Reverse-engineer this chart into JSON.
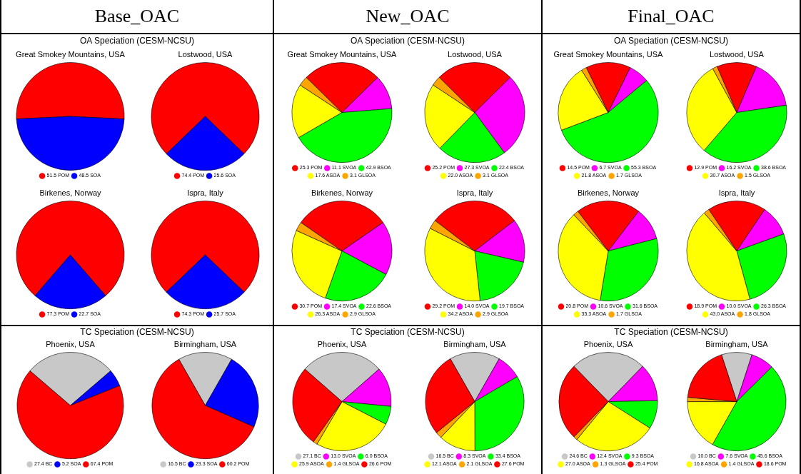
{
  "chart_data": [
    {
      "type": "pie",
      "title": "Great Smokey Mountains, USA",
      "categories": [
        "POM",
        "SOA"
      ],
      "values": [
        51.5,
        48.5
      ],
      "value_labels": [
        "51.5",
        "48.5"
      ],
      "colors": [
        "#ff0000",
        "#0000ff"
      ],
      "legend": "bottom",
      "annotations": [
        "Base_OAC",
        "OA Speciation (CESM-NCSU)"
      ]
    },
    {
      "type": "pie",
      "title": "Lostwood, USA",
      "categories": [
        "POM",
        "SOA"
      ],
      "values": [
        74.4,
        25.6
      ],
      "value_labels": [
        "74.4",
        "25.6"
      ],
      "colors": [
        "#ff0000",
        "#0000ff"
      ],
      "legend": "bottom"
    },
    {
      "type": "pie",
      "title": "Great Smokey Mountains, USA",
      "categories": [
        "POM",
        "SVOA",
        "BSOA",
        "ASOA",
        "GLSOA"
      ],
      "values": [
        25.3,
        11.1,
        42.9,
        17.6,
        3.1
      ],
      "value_labels": [
        "25.3",
        "11.1",
        "42.9",
        "17.6",
        "3.1"
      ],
      "colors": [
        "#ff0000",
        "#ff00ff",
        "#00ff00",
        "#ffff00",
        "#ffa500"
      ],
      "legend": "bottom",
      "annotations": [
        "New_OAC",
        "OA Speciation (CESM-NCSU)"
      ]
    },
    {
      "type": "pie",
      "title": "Lostwood, USA",
      "categories": [
        "POM",
        "SVOA",
        "BSOA",
        "ASOA",
        "GLSOA"
      ],
      "values": [
        25.2,
        27.3,
        22.4,
        22.0,
        3.1
      ],
      "value_labels": [
        "25.2",
        "27.3",
        "22.4",
        "22.0",
        "3.1"
      ],
      "colors": [
        "#ff0000",
        "#ff00ff",
        "#00ff00",
        "#ffff00",
        "#ffa500"
      ],
      "legend": "bottom"
    },
    {
      "type": "pie",
      "title": "Great Smokey Mountains, USA",
      "categories": [
        "POM",
        "SVOA",
        "BSOA",
        "ASOA",
        "GLSOA"
      ],
      "values": [
        14.5,
        6.7,
        55.3,
        21.8,
        1.7
      ],
      "value_labels": [
        "14.5",
        "6.7",
        "55.3",
        "21.8",
        "1.7"
      ],
      "colors": [
        "#ff0000",
        "#ff00ff",
        "#00ff00",
        "#ffff00",
        "#ffa500"
      ],
      "legend": "bottom",
      "annotations": [
        "Final_OAC",
        "OA Speciation (CESM-NCSU)"
      ]
    },
    {
      "type": "pie",
      "title": "Lostwood, USA",
      "categories": [
        "POM",
        "SVOA",
        "BSOA",
        "ASOA",
        "GLSOA"
      ],
      "values": [
        12.9,
        16.2,
        38.6,
        30.7,
        1.5
      ],
      "value_labels": [
        "12.9",
        "16.2",
        "38.6",
        "30.7",
        "1.5"
      ],
      "colors": [
        "#ff0000",
        "#ff00ff",
        "#00ff00",
        "#ffff00",
        "#ffa500"
      ],
      "legend": "bottom"
    },
    {
      "type": "pie",
      "title": "Birkenes, Norway",
      "categories": [
        "POM",
        "SOA"
      ],
      "values": [
        77.3,
        22.7
      ],
      "value_labels": [
        "77.3",
        "22.7"
      ],
      "colors": [
        "#ff0000",
        "#0000ff"
      ],
      "legend": "bottom"
    },
    {
      "type": "pie",
      "title": "Ispra, Italy",
      "categories": [
        "POM",
        "SOA"
      ],
      "values": [
        74.3,
        25.7
      ],
      "value_labels": [
        "74.3",
        "25.7"
      ],
      "colors": [
        "#ff0000",
        "#0000ff"
      ],
      "legend": "bottom"
    },
    {
      "type": "pie",
      "title": "Birkenes, Norway",
      "categories": [
        "POM",
        "SVOA",
        "BSOA",
        "ASOA",
        "GLSOA"
      ],
      "values": [
        30.7,
        17.4,
        22.6,
        26.3,
        2.9
      ],
      "value_labels": [
        "30.7",
        "17.4",
        "22.6",
        "26.3",
        "2.9"
      ],
      "colors": [
        "#ff0000",
        "#ff00ff",
        "#00ff00",
        "#ffff00",
        "#ffa500"
      ],
      "legend": "bottom"
    },
    {
      "type": "pie",
      "title": "Ispra, Italy",
      "categories": [
        "POM",
        "SVOA",
        "BSOA",
        "ASOA",
        "GLSOA"
      ],
      "values": [
        29.2,
        14.0,
        19.7,
        34.2,
        2.9
      ],
      "value_labels": [
        "29.2",
        "14.0",
        "19.7",
        "34.2",
        "2.9"
      ],
      "colors": [
        "#ff0000",
        "#ff00ff",
        "#00ff00",
        "#ffff00",
        "#ffa500"
      ],
      "legend": "bottom"
    },
    {
      "type": "pie",
      "title": "Birkenes, Norway",
      "categories": [
        "POM",
        "SVOA",
        "BSOA",
        "ASOA",
        "GLSOA"
      ],
      "values": [
        20.8,
        10.6,
        31.6,
        35.3,
        1.7
      ],
      "value_labels": [
        "20.8",
        "10.6",
        "31.6",
        "35.3",
        "1.7"
      ],
      "colors": [
        "#ff0000",
        "#ff00ff",
        "#00ff00",
        "#ffff00",
        "#ffa500"
      ],
      "legend": "bottom"
    },
    {
      "type": "pie",
      "title": "Ispra, Italy",
      "categories": [
        "POM",
        "SVOA",
        "BSOA",
        "ASOA",
        "GLSOA"
      ],
      "values": [
        18.9,
        10.0,
        26.3,
        43.0,
        1.8
      ],
      "value_labels": [
        "18.9",
        "10.0",
        "26.3",
        "43.0",
        "1.8"
      ],
      "colors": [
        "#ff0000",
        "#ff00ff",
        "#00ff00",
        "#ffff00",
        "#ffa500"
      ],
      "legend": "bottom"
    },
    {
      "type": "pie",
      "title": "Phoenix, USA",
      "categories": [
        "BC",
        "SOA",
        "POM"
      ],
      "values": [
        27.4,
        5.2,
        67.4
      ],
      "value_labels": [
        "27.4",
        "5.2",
        "67.4"
      ],
      "colors": [
        "#c8c8c8",
        "#0000ff",
        "#ff0000"
      ],
      "legend": "bottom",
      "annotations": [
        "TC Speciation (CESM-NCSU)"
      ]
    },
    {
      "type": "pie",
      "title": "Birmingham, USA",
      "categories": [
        "BC",
        "SOA",
        "POM"
      ],
      "values": [
        16.5,
        23.3,
        60.2
      ],
      "value_labels": [
        "16.5",
        "23.3",
        "60.2"
      ],
      "colors": [
        "#c8c8c8",
        "#0000ff",
        "#ff0000"
      ],
      "legend": "bottom"
    },
    {
      "type": "pie",
      "title": "Phoenix, USA",
      "categories": [
        "BC",
        "SVOA",
        "BSOA",
        "ASOA",
        "GLSOA",
        "POM"
      ],
      "values": [
        27.1,
        13.0,
        6.0,
        25.9,
        1.4,
        26.6
      ],
      "value_labels": [
        "27.1",
        "13.0",
        "6.0",
        "25.9",
        "1.4",
        "26.6"
      ],
      "colors": [
        "#c8c8c8",
        "#ff00ff",
        "#00ff00",
        "#ffff00",
        "#ffa500",
        "#ff0000"
      ],
      "legend": "bottom",
      "annotations": [
        "TC Speciation (CESM-NCSU)"
      ]
    },
    {
      "type": "pie",
      "title": "Birmingham, USA",
      "categories": [
        "BC",
        "SVOA",
        "BSOA",
        "ASOA",
        "GLSOA",
        "POM"
      ],
      "values": [
        16.5,
        8.3,
        33.4,
        12.1,
        2.1,
        27.6
      ],
      "value_labels": [
        "16.5",
        "8.3",
        "33.4",
        "12.1",
        "2.1",
        "27.6"
      ],
      "colors": [
        "#c8c8c8",
        "#ff00ff",
        "#00ff00",
        "#ffff00",
        "#ffa500",
        "#ff0000"
      ],
      "legend": "bottom"
    },
    {
      "type": "pie",
      "title": "Phoenix, USA",
      "categories": [
        "BC",
        "SVOA",
        "BSOA",
        "ASOA",
        "GLSOA",
        "POM"
      ],
      "values": [
        24.6,
        12.4,
        9.3,
        27.0,
        1.3,
        25.4
      ],
      "value_labels": [
        "24.6",
        "12.4",
        "9.3",
        "27.0",
        "1.3",
        "25.4"
      ],
      "colors": [
        "#c8c8c8",
        "#ff00ff",
        "#00ff00",
        "#ffff00",
        "#ffa500",
        "#ff0000"
      ],
      "legend": "bottom",
      "annotations": [
        "TC Speciation (CESM-NCSU)"
      ]
    },
    {
      "type": "pie",
      "title": "Birmingham, USA",
      "categories": [
        "BC",
        "SVOA",
        "BSOA",
        "ASOA",
        "GLSOA",
        "POM"
      ],
      "values": [
        10.0,
        7.6,
        45.6,
        16.8,
        1.4,
        18.6
      ],
      "value_labels": [
        "10.0",
        "7.6",
        "45.6",
        "16.8",
        "1.4",
        "18.6"
      ],
      "colors": [
        "#c8c8c8",
        "#ff00ff",
        "#00ff00",
        "#ffff00",
        "#ffa500",
        "#ff0000"
      ],
      "legend": "bottom"
    }
  ]
}
